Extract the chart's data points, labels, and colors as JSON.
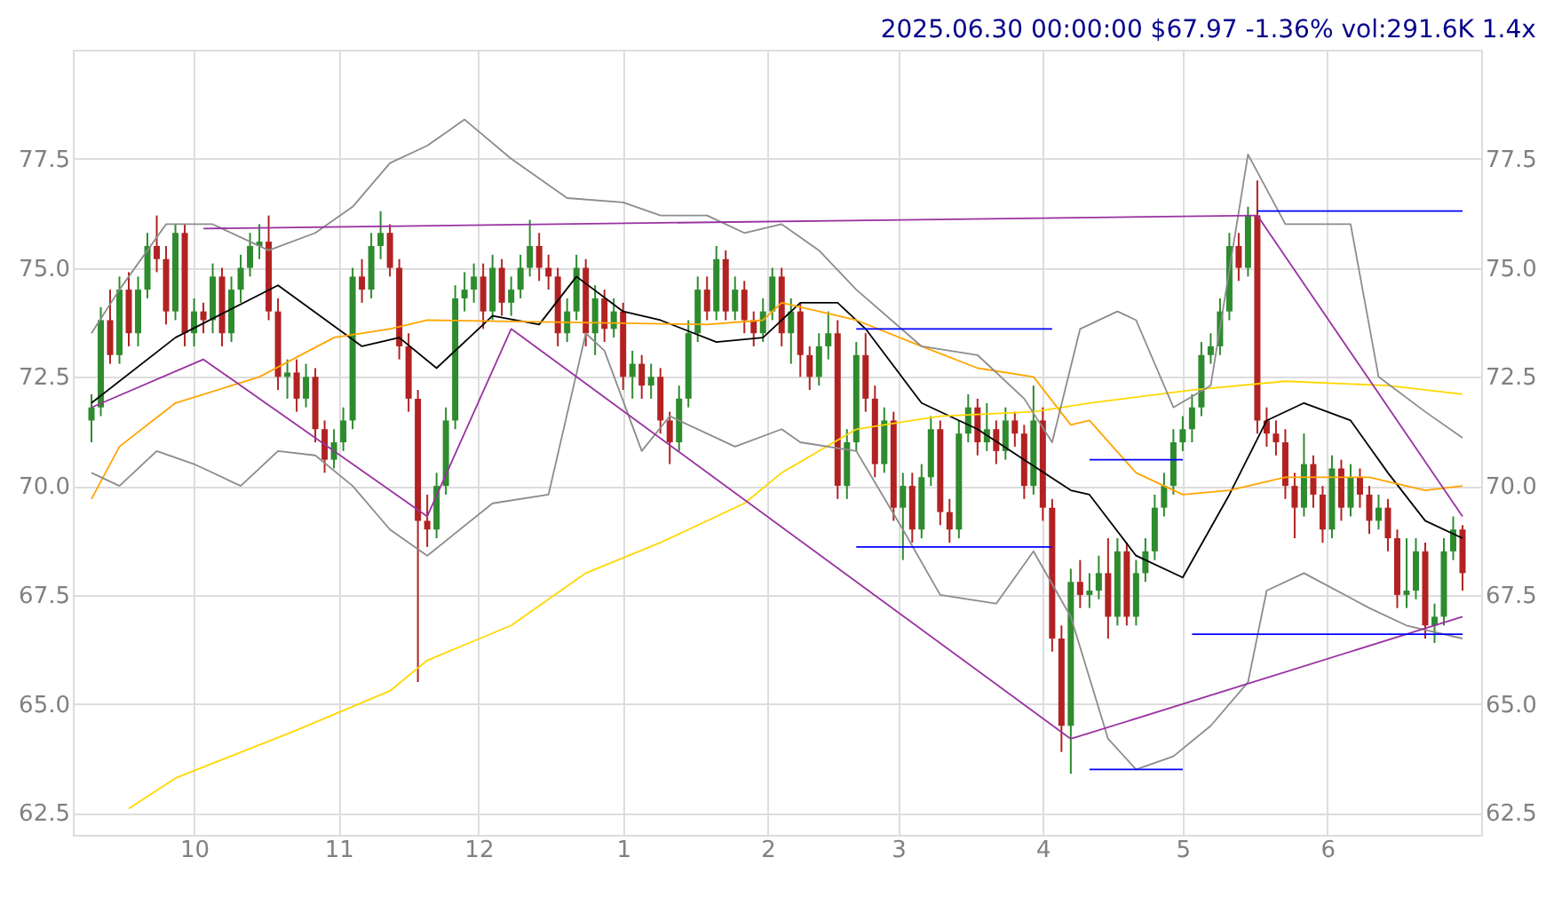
{
  "chart_data": {
    "type": "candlestick",
    "title": "2025.06.30 00:00:00 $67.97 -1.36% vol:291.6K 1.4x",
    "x": [
      "2024-09-09",
      "2024-09-11",
      "2024-09-13",
      "2024-09-15",
      "2024-09-17",
      "2024-09-19",
      "2024-09-21",
      "2024-09-23",
      "2024-09-25",
      "2024-09-27",
      "2024-09-29",
      "2024-10-01",
      "2024-10-03",
      "2024-10-05",
      "2024-10-07",
      "2024-10-09",
      "2024-10-11",
      "2024-10-13",
      "2024-10-15",
      "2024-10-17",
      "2024-10-19",
      "2024-10-21",
      "2024-10-23",
      "2024-10-25",
      "2024-10-27",
      "2024-10-29",
      "2024-10-31",
      "2024-11-02",
      "2024-11-04",
      "2024-11-06",
      "2024-11-08",
      "2024-11-10",
      "2024-11-12",
      "2024-11-14",
      "2024-11-16",
      "2024-11-18",
      "2024-11-20",
      "2024-11-22",
      "2024-11-24",
      "2024-11-26",
      "2024-11-28",
      "2024-11-30",
      "2024-12-02",
      "2024-12-04",
      "2024-12-06",
      "2024-12-08",
      "2024-12-10",
      "2024-12-12",
      "2024-12-14",
      "2024-12-16",
      "2024-12-18",
      "2024-12-20",
      "2024-12-22",
      "2024-12-24",
      "2024-12-26",
      "2024-12-28",
      "2024-12-30",
      "2025-01-01",
      "2025-01-03",
      "2025-01-05",
      "2025-01-07",
      "2025-01-09",
      "2025-01-11",
      "2025-01-13",
      "2025-01-15",
      "2025-01-17",
      "2025-01-19",
      "2025-01-21",
      "2025-01-23",
      "2025-01-25",
      "2025-01-27",
      "2025-01-29",
      "2025-01-31",
      "2025-02-02",
      "2025-02-04",
      "2025-02-06",
      "2025-02-08",
      "2025-02-10",
      "2025-02-12",
      "2025-02-14",
      "2025-02-16",
      "2025-02-18",
      "2025-02-20",
      "2025-02-22",
      "2025-02-24",
      "2025-02-26",
      "2025-02-28",
      "2025-03-02",
      "2025-03-04",
      "2025-03-06",
      "2025-03-08",
      "2025-03-10",
      "2025-03-12",
      "2025-03-14",
      "2025-03-16",
      "2025-03-18",
      "2025-03-20",
      "2025-03-22",
      "2025-03-24",
      "2025-03-26",
      "2025-03-28",
      "2025-03-30",
      "2025-04-01",
      "2025-04-03",
      "2025-04-05",
      "2025-04-07",
      "2025-04-09",
      "2025-04-11",
      "2025-04-13",
      "2025-04-15",
      "2025-04-17",
      "2025-04-19",
      "2025-04-21",
      "2025-04-23",
      "2025-04-25",
      "2025-04-27",
      "2025-04-29",
      "2025-05-01",
      "2025-05-03",
      "2025-05-05",
      "2025-05-07",
      "2025-05-09",
      "2025-05-11",
      "2025-05-13",
      "2025-05-15",
      "2025-05-17",
      "2025-05-19",
      "2025-05-21",
      "2025-05-23",
      "2025-05-25",
      "2025-05-27",
      "2025-05-29",
      "2025-05-31",
      "2025-06-02",
      "2025-06-04",
      "2025-06-06",
      "2025-06-08",
      "2025-06-10",
      "2025-06-12",
      "2025-06-14",
      "2025-06-16",
      "2025-06-18",
      "2025-06-20",
      "2025-06-22",
      "2025-06-24",
      "2025-06-26",
      "2025-06-28",
      "2025-06-30"
    ],
    "ohlc": [
      [
        71.5,
        72.1,
        71.0,
        71.8
      ],
      [
        71.8,
        74.1,
        71.6,
        73.8
      ],
      [
        73.8,
        74.5,
        72.8,
        73.0
      ],
      [
        73.0,
        74.8,
        72.8,
        74.5
      ],
      [
        74.5,
        74.9,
        73.2,
        73.5
      ],
      [
        73.5,
        74.8,
        73.2,
        74.5
      ],
      [
        74.5,
        75.8,
        74.3,
        75.5
      ],
      [
        75.5,
        76.2,
        74.9,
        75.2
      ],
      [
        75.2,
        75.5,
        73.7,
        74.0
      ],
      [
        74.0,
        76.0,
        73.8,
        75.8
      ],
      [
        75.8,
        76.0,
        73.2,
        73.5
      ],
      [
        73.5,
        74.3,
        73.2,
        74.0
      ],
      [
        74.0,
        74.2,
        73.5,
        73.8
      ],
      [
        73.8,
        75.1,
        73.5,
        74.8
      ],
      [
        74.8,
        75.0,
        73.2,
        73.5
      ],
      [
        73.5,
        74.8,
        73.3,
        74.5
      ],
      [
        74.5,
        75.3,
        74.2,
        75.0
      ],
      [
        75.0,
        75.8,
        74.8,
        75.5
      ],
      [
        75.5,
        76.0,
        75.2,
        75.6
      ],
      [
        75.6,
        76.2,
        73.8,
        74.0
      ],
      [
        74.0,
        74.3,
        72.2,
        72.5
      ],
      [
        72.5,
        72.9,
        72.0,
        72.6
      ],
      [
        72.6,
        72.9,
        71.7,
        72.0
      ],
      [
        72.0,
        72.8,
        71.8,
        72.5
      ],
      [
        72.5,
        72.7,
        71.0,
        71.3
      ],
      [
        71.3,
        71.5,
        70.3,
        70.6
      ],
      [
        70.6,
        71.3,
        70.4,
        71.0
      ],
      [
        71.0,
        71.8,
        70.8,
        71.5
      ],
      [
        71.5,
        75.0,
        71.3,
        74.8
      ],
      [
        74.8,
        75.2,
        74.2,
        74.5
      ],
      [
        74.5,
        75.8,
        74.3,
        75.5
      ],
      [
        75.5,
        76.3,
        75.2,
        75.8
      ],
      [
        75.8,
        76.0,
        74.8,
        75.0
      ],
      [
        75.0,
        75.2,
        72.9,
        73.2
      ],
      [
        73.2,
        73.5,
        71.7,
        72.0
      ],
      [
        72.0,
        72.2,
        65.5,
        69.2
      ],
      [
        69.2,
        69.8,
        68.6,
        69.0
      ],
      [
        69.0,
        70.3,
        68.8,
        70.0
      ],
      [
        70.0,
        71.8,
        69.8,
        71.5
      ],
      [
        71.5,
        74.6,
        71.3,
        74.3
      ],
      [
        74.3,
        74.9,
        74.0,
        74.5
      ],
      [
        74.5,
        75.1,
        74.2,
        74.8
      ],
      [
        74.8,
        75.1,
        73.6,
        74.0
      ],
      [
        74.0,
        75.3,
        73.8,
        75.0
      ],
      [
        75.0,
        75.2,
        73.9,
        74.2
      ],
      [
        74.2,
        74.8,
        73.9,
        74.5
      ],
      [
        74.5,
        75.3,
        74.3,
        75.0
      ],
      [
        75.0,
        76.1,
        74.8,
        75.5
      ],
      [
        75.5,
        75.8,
        74.7,
        75.0
      ],
      [
        75.0,
        75.3,
        74.5,
        74.8
      ],
      [
        74.8,
        75.0,
        73.2,
        73.5
      ],
      [
        73.5,
        74.3,
        73.3,
        74.0
      ],
      [
        74.0,
        75.3,
        73.8,
        75.0
      ],
      [
        75.0,
        75.2,
        73.2,
        73.5
      ],
      [
        73.5,
        74.6,
        73.0,
        74.3
      ],
      [
        74.3,
        74.5,
        73.3,
        73.6
      ],
      [
        73.6,
        74.3,
        73.4,
        74.0
      ],
      [
        74.0,
        74.2,
        72.2,
        72.5
      ],
      [
        72.5,
        73.1,
        72.0,
        72.8
      ],
      [
        72.8,
        73.0,
        72.0,
        72.3
      ],
      [
        72.3,
        72.8,
        72.0,
        72.5
      ],
      [
        72.5,
        72.7,
        71.2,
        71.5
      ],
      [
        71.5,
        71.7,
        70.5,
        71.0
      ],
      [
        71.0,
        72.3,
        70.8,
        72.0
      ],
      [
        72.0,
        73.8,
        71.8,
        73.5
      ],
      [
        73.5,
        74.8,
        73.3,
        74.5
      ],
      [
        74.5,
        74.8,
        73.8,
        74.0
      ],
      [
        74.0,
        75.5,
        73.8,
        75.2
      ],
      [
        75.2,
        75.4,
        73.8,
        74.0
      ],
      [
        74.0,
        74.8,
        73.8,
        74.5
      ],
      [
        74.5,
        74.7,
        73.5,
        73.8
      ],
      [
        73.8,
        74.0,
        73.2,
        73.5
      ],
      [
        73.5,
        74.3,
        73.3,
        74.0
      ],
      [
        74.0,
        75.0,
        73.8,
        74.8
      ],
      [
        74.8,
        75.0,
        73.2,
        73.5
      ],
      [
        73.5,
        74.3,
        72.8,
        74.0
      ],
      [
        74.0,
        74.2,
        72.5,
        73.0
      ],
      [
        73.0,
        73.2,
        72.2,
        72.5
      ],
      [
        72.5,
        73.5,
        72.3,
        73.2
      ],
      [
        73.2,
        74.0,
        72.9,
        73.5
      ],
      [
        73.5,
        73.8,
        69.7,
        70.0
      ],
      [
        70.0,
        71.3,
        69.7,
        71.0
      ],
      [
        71.0,
        73.3,
        70.8,
        73.0
      ],
      [
        73.0,
        73.5,
        71.7,
        72.0
      ],
      [
        72.0,
        72.3,
        70.2,
        70.5
      ],
      [
        70.5,
        71.8,
        70.3,
        71.5
      ],
      [
        71.5,
        71.7,
        69.2,
        69.5
      ],
      [
        69.5,
        70.3,
        68.3,
        70.0
      ],
      [
        70.0,
        70.3,
        68.7,
        69.0
      ],
      [
        69.0,
        70.5,
        68.8,
        70.2
      ],
      [
        70.2,
        71.6,
        70.0,
        71.3
      ],
      [
        71.3,
        71.5,
        69.1,
        69.4
      ],
      [
        69.4,
        69.7,
        68.7,
        69.0
      ],
      [
        69.0,
        71.5,
        68.8,
        71.2
      ],
      [
        71.2,
        72.1,
        71.0,
        71.8
      ],
      [
        71.8,
        72.0,
        70.7,
        71.0
      ],
      [
        71.0,
        71.9,
        70.8,
        71.3
      ],
      [
        71.3,
        71.5,
        70.5,
        70.8
      ],
      [
        70.8,
        71.8,
        70.6,
        71.5
      ],
      [
        71.5,
        71.7,
        70.9,
        71.2
      ],
      [
        71.2,
        71.4,
        69.7,
        70.0
      ],
      [
        70.0,
        72.3,
        69.8,
        71.5
      ],
      [
        71.5,
        71.8,
        69.2,
        69.5
      ],
      [
        69.5,
        69.7,
        66.2,
        66.5
      ],
      [
        66.5,
        66.8,
        63.9,
        64.5
      ],
      [
        64.5,
        68.1,
        63.4,
        67.8
      ],
      [
        67.8,
        68.3,
        67.2,
        67.5
      ],
      [
        67.5,
        68.0,
        67.2,
        67.6
      ],
      [
        67.6,
        68.4,
        67.4,
        68.0
      ],
      [
        68.0,
        68.8,
        66.5,
        67.0
      ],
      [
        67.0,
        68.8,
        66.8,
        68.5
      ],
      [
        68.5,
        68.7,
        66.8,
        67.0
      ],
      [
        67.0,
        68.3,
        66.8,
        68.0
      ],
      [
        68.0,
        68.8,
        67.8,
        68.5
      ],
      [
        68.5,
        69.8,
        68.3,
        69.5
      ],
      [
        69.5,
        70.3,
        69.3,
        70.0
      ],
      [
        70.0,
        71.3,
        69.8,
        71.0
      ],
      [
        71.0,
        71.6,
        70.8,
        71.3
      ],
      [
        71.3,
        72.1,
        71.0,
        71.8
      ],
      [
        71.8,
        73.3,
        71.6,
        73.0
      ],
      [
        73.0,
        73.5,
        72.8,
        73.2
      ],
      [
        73.2,
        74.3,
        73.0,
        74.0
      ],
      [
        74.0,
        75.8,
        73.8,
        75.5
      ],
      [
        75.5,
        75.8,
        74.7,
        75.0
      ],
      [
        75.0,
        76.4,
        74.8,
        76.2
      ],
      [
        76.2,
        77.0,
        71.2,
        71.5
      ],
      [
        71.5,
        71.8,
        70.9,
        71.2
      ],
      [
        71.2,
        71.5,
        70.7,
        71.0
      ],
      [
        71.0,
        71.3,
        69.7,
        70.0
      ],
      [
        70.0,
        70.3,
        68.8,
        69.5
      ],
      [
        69.5,
        71.2,
        69.3,
        70.5
      ],
      [
        70.5,
        70.7,
        69.5,
        69.8
      ],
      [
        69.8,
        70.0,
        68.7,
        69.0
      ],
      [
        69.0,
        70.7,
        68.8,
        70.4
      ],
      [
        70.4,
        70.6,
        69.2,
        69.5
      ],
      [
        69.5,
        70.5,
        69.3,
        70.2
      ],
      [
        70.2,
        70.4,
        69.5,
        69.8
      ],
      [
        69.8,
        70.0,
        68.9,
        69.2
      ],
      [
        69.2,
        69.8,
        69.0,
        69.5
      ],
      [
        69.5,
        69.7,
        68.5,
        68.8
      ],
      [
        68.8,
        69.0,
        67.2,
        67.5
      ],
      [
        67.5,
        68.8,
        67.2,
        67.6
      ],
      [
        67.6,
        68.8,
        67.4,
        68.5
      ],
      [
        68.5,
        68.7,
        66.5,
        66.8
      ],
      [
        66.8,
        67.3,
        66.4,
        67.0
      ],
      [
        67.0,
        68.8,
        66.8,
        68.5
      ],
      [
        68.5,
        69.3,
        68.3,
        69.0
      ],
      [
        69.0,
        69.1,
        67.6,
        68.0
      ]
    ],
    "colors": [
      "#2e8b2e",
      "#2e8b2e",
      "#b22222",
      "#2e8b2e",
      "#b22222",
      "#2e8b2e",
      "#2e8b2e",
      "#b22222",
      "#b22222",
      "#2e8b2e",
      "#b22222",
      "#2e8b2e",
      "#b22222",
      "#2e8b2e",
      "#b22222",
      "#2e8b2e",
      "#2e8b2e",
      "#2e8b2e",
      "#2e8b2e",
      "#b22222",
      "#b22222",
      "#2e8b2e",
      "#b22222",
      "#2e8b2e",
      "#b22222",
      "#b22222",
      "#2e8b2e",
      "#2e8b2e",
      "#2e8b2e",
      "#b22222",
      "#2e8b2e",
      "#2e8b2e",
      "#b22222",
      "#b22222",
      "#b22222",
      "#b22222",
      "#b22222",
      "#2e8b2e",
      "#2e8b2e",
      "#2e8b2e",
      "#2e8b2e",
      "#2e8b2e",
      "#b22222",
      "#2e8b2e",
      "#b22222",
      "#2e8b2e",
      "#2e8b2e",
      "#2e8b2e",
      "#b22222",
      "#b22222",
      "#b22222",
      "#2e8b2e",
      "#2e8b2e",
      "#b22222",
      "#2e8b2e",
      "#b22222",
      "#2e8b2e",
      "#b22222",
      "#2e8b2e",
      "#b22222",
      "#2e8b2e",
      "#b22222",
      "#b22222",
      "#2e8b2e",
      "#2e8b2e",
      "#2e8b2e",
      "#b22222",
      "#2e8b2e",
      "#b22222",
      "#2e8b2e",
      "#b22222",
      "#b22222",
      "#2e8b2e",
      "#2e8b2e",
      "#b22222",
      "#2e8b2e",
      "#b22222",
      "#b22222",
      "#2e8b2e",
      "#2e8b2e",
      "#b22222",
      "#2e8b2e",
      "#2e8b2e",
      "#b22222",
      "#b22222",
      "#2e8b2e",
      "#b22222",
      "#2e8b2e",
      "#b22222",
      "#2e8b2e",
      "#2e8b2e",
      "#b22222",
      "#b22222",
      "#2e8b2e",
      "#2e8b2e",
      "#b22222",
      "#2e8b2e",
      "#b22222",
      "#2e8b2e",
      "#b22222",
      "#b22222",
      "#2e8b2e",
      "#b22222",
      "#b22222",
      "#b22222",
      "#2e8b2e",
      "#b22222",
      "#2e8b2e",
      "#2e8b2e",
      "#b22222",
      "#2e8b2e",
      "#b22222",
      "#2e8b2e",
      "#2e8b2e",
      "#2e8b2e",
      "#2e8b2e",
      "#2e8b2e",
      "#2e8b2e",
      "#2e8b2e",
      "#2e8b2e",
      "#2e8b2e",
      "#2e8b2e",
      "#2e8b2e",
      "#b22222",
      "#2e8b2e",
      "#b22222",
      "#b22222",
      "#b22222",
      "#b22222",
      "#b22222",
      "#2e8b2e",
      "#b22222",
      "#b22222",
      "#2e8b2e",
      "#b22222",
      "#2e8b2e",
      "#b22222",
      "#b22222",
      "#2e8b2e",
      "#b22222",
      "#b22222",
      "#2e8b2e",
      "#2e8b2e",
      "#b22222",
      "#2e8b2e",
      "#2e8b2e",
      "#2e8b2e",
      "#b22222"
    ],
    "series": [
      {
        "type": "line",
        "color": "#000000",
        "x": [
          "2024-09-09",
          "2024-09-27",
          "2024-10-19",
          "2024-11-06",
          "2024-11-14",
          "2024-11-22",
          "2024-12-04",
          "2024-12-14",
          "2024-12-22",
          "2025-01-01",
          "2025-01-09",
          "2025-01-21",
          "2025-01-31",
          "2025-02-08",
          "2025-02-16",
          "2025-02-22",
          "2025-03-06",
          "2025-03-18",
          "2025-03-28",
          "2025-04-07",
          "2025-04-11",
          "2025-04-21",
          "2025-05-01",
          "2025-05-11",
          "2025-05-19",
          "2025-05-27",
          "2025-06-06",
          "2025-06-14",
          "2025-06-22",
          "2025-06-30"
        ],
        "values": [
          71.9,
          73.4,
          74.6,
          73.2,
          73.4,
          72.7,
          73.9,
          73.7,
          74.8,
          74.0,
          73.8,
          73.3,
          73.4,
          74.2,
          74.2,
          73.6,
          71.9,
          71.3,
          70.6,
          69.9,
          69.8,
          68.4,
          67.9,
          69.8,
          71.5,
          71.9,
          71.5,
          70.3,
          69.2,
          68.8
        ]
      },
      {
        "type": "line",
        "color": "#ffa500",
        "x": [
          "2024-09-09",
          "2024-09-15",
          "2024-09-27",
          "2024-10-15",
          "2024-10-31",
          "2024-11-12",
          "2024-11-20",
          "2025-01-19",
          "2025-01-31",
          "2025-02-04",
          "2025-02-20",
          "2025-03-06",
          "2025-03-18",
          "2025-03-30",
          "2025-04-07",
          "2025-04-11",
          "2025-04-21",
          "2025-05-01",
          "2025-05-11",
          "2025-05-23",
          "2025-06-10",
          "2025-06-22",
          "2025-06-30"
        ],
        "values": [
          69.7,
          70.9,
          71.9,
          72.5,
          73.4,
          73.6,
          73.8,
          73.7,
          73.8,
          74.2,
          73.8,
          73.2,
          72.7,
          72.5,
          71.4,
          71.5,
          70.3,
          69.8,
          69.9,
          70.2,
          70.2,
          69.9,
          70.0
        ]
      },
      {
        "type": "line",
        "color": "#ffd700",
        "x": [
          "2024-09-17",
          "2024-09-27",
          "2024-10-23",
          "2024-11-12",
          "2024-11-20",
          "2024-12-08",
          "2024-12-24",
          "2025-01-09",
          "2025-01-27",
          "2025-02-04",
          "2025-02-20",
          "2025-03-10",
          "2025-03-30",
          "2025-04-11",
          "2025-05-03",
          "2025-05-23",
          "2025-06-14",
          "2025-06-30"
        ],
        "values": [
          62.6,
          63.3,
          64.4,
          65.3,
          66.0,
          66.8,
          68.0,
          68.7,
          69.6,
          70.3,
          71.3,
          71.6,
          71.7,
          71.9,
          72.2,
          72.4,
          72.3,
          72.1
        ]
      },
      {
        "type": "line",
        "color": "#8c8c8c",
        "x": [
          "2024-09-09",
          "2024-09-15",
          "2024-09-25",
          "2024-10-05",
          "2024-10-17",
          "2024-10-27",
          "2024-11-04",
          "2024-11-12",
          "2024-11-20",
          "2024-11-28",
          "2024-12-08",
          "2024-12-20",
          "2025-01-01",
          "2025-01-09",
          "2025-01-19",
          "2025-01-27",
          "2025-02-04",
          "2025-02-12",
          "2025-02-20",
          "2025-03-06",
          "2025-03-18",
          "2025-03-28",
          "2025-04-03",
          "2025-04-09",
          "2025-04-17",
          "2025-04-21",
          "2025-04-29",
          "2025-05-07",
          "2025-05-15",
          "2025-05-23",
          "2025-06-06",
          "2025-06-12",
          "2025-06-22",
          "2025-06-30"
        ],
        "values": [
          73.5,
          74.5,
          76.0,
          76.0,
          75.4,
          75.8,
          76.4,
          77.4,
          77.8,
          78.4,
          77.5,
          76.6,
          76.5,
          76.2,
          76.2,
          75.8,
          76.0,
          75.4,
          74.5,
          73.2,
          73.0,
          72.0,
          71.0,
          73.6,
          74.0,
          73.8,
          71.8,
          72.3,
          77.6,
          76.0,
          76.0,
          72.5,
          71.7,
          71.1
        ]
      },
      {
        "type": "line",
        "color": "#8c8c8c",
        "x": [
          "2024-09-09",
          "2024-09-15",
          "2024-09-23",
          "2024-10-01",
          "2024-10-11",
          "2024-10-19",
          "2024-10-27",
          "2024-11-04",
          "2024-11-12",
          "2024-11-20",
          "2024-12-04",
          "2024-12-16",
          "2024-12-24",
          "2024-12-28",
          "2025-01-05",
          "2025-01-11",
          "2025-01-25",
          "2025-02-04",
          "2025-02-08",
          "2025-02-20",
          "2025-03-02",
          "2025-03-10",
          "2025-03-22",
          "2025-03-30",
          "2025-04-07",
          "2025-04-15",
          "2025-04-21",
          "2025-04-29",
          "2025-05-07",
          "2025-05-15",
          "2025-05-19",
          "2025-05-27",
          "2025-06-10",
          "2025-06-18",
          "2025-06-30"
        ],
        "values": [
          70.3,
          70.0,
          70.8,
          70.5,
          70.0,
          70.8,
          70.7,
          70.0,
          69.0,
          68.4,
          69.6,
          69.8,
          73.5,
          73.1,
          70.8,
          71.6,
          70.9,
          71.3,
          71.0,
          70.8,
          69.0,
          67.5,
          67.3,
          68.5,
          67.0,
          64.2,
          63.5,
          63.8,
          64.5,
          65.5,
          67.6,
          68.0,
          67.2,
          66.8,
          66.5
        ]
      },
      {
        "type": "line",
        "color": "#9932a0",
        "x": [
          "2024-09-09",
          "2024-10-03",
          "2024-11-20",
          "2024-12-08",
          "2025-04-07",
          "2025-06-30"
        ],
        "values": [
          71.8,
          72.9,
          69.3,
          73.6,
          64.2,
          67.0
        ]
      },
      {
        "type": "line",
        "color": "#9932a0",
        "x": [
          "2024-10-03",
          "2025-05-17"
        ],
        "values": [
          75.9,
          76.2
        ]
      },
      {
        "type": "line",
        "color": "#9932a0",
        "x": [
          "2025-05-17",
          "2025-06-30"
        ],
        "values": [
          76.2,
          69.3
        ]
      },
      {
        "type": "line",
        "color": "#0000ff",
        "x": [
          "2025-02-20",
          "2025-04-03"
        ],
        "values": [
          73.6,
          73.6
        ]
      },
      {
        "type": "line",
        "color": "#0000ff",
        "x": [
          "2025-02-20",
          "2025-04-03"
        ],
        "values": [
          68.6,
          68.6
        ]
      },
      {
        "type": "line",
        "color": "#0000ff",
        "x": [
          "2025-04-11",
          "2025-05-01"
        ],
        "values": [
          70.6,
          70.6
        ]
      },
      {
        "type": "line",
        "color": "#0000ff",
        "x": [
          "2025-04-11",
          "2025-05-01"
        ],
        "values": [
          63.5,
          63.5
        ]
      },
      {
        "type": "line",
        "color": "#0000ff",
        "x": [
          "2025-05-03",
          "2025-06-30"
        ],
        "values": [
          66.6,
          66.6
        ]
      },
      {
        "type": "line",
        "color": "#0000ff",
        "x": [
          "2025-05-17",
          "2025-06-30"
        ],
        "values": [
          76.3,
          76.3
        ]
      }
    ],
    "xlim": [
      "2024-09-05",
      "2025-07-04"
    ],
    "xticks": [
      {
        "value": "2024-10-01",
        "label": "10"
      },
      {
        "value": "2024-11-01",
        "label": "11"
      },
      {
        "value": "2024-12-01",
        "label": "12"
      },
      {
        "value": "2025-01-01",
        "label": "1"
      },
      {
        "value": "2025-02-01",
        "label": "2"
      },
      {
        "value": "2025-03-01",
        "label": "3"
      },
      {
        "value": "2025-04-01",
        "label": "4"
      },
      {
        "value": "2025-05-01",
        "label": "5"
      },
      {
        "value": "2025-06-01",
        "label": "6"
      }
    ],
    "ylim": [
      62,
      80
    ],
    "yticks": [
      62.5,
      {
        "value": 65,
        "label": "65.0"
      },
      67.5,
      {
        "value": 70,
        "label": "70.0"
      },
      72.5,
      {
        "value": 75,
        "label": "75.0"
      },
      77.5
    ],
    "y2lim": [
      62,
      80
    ],
    "y2ticks": [
      62.5,
      {
        "value": 65,
        "label": "65.0"
      },
      67.5,
      {
        "value": 70,
        "label": "70.0"
      },
      72.5,
      {
        "value": 75,
        "label": "75.0"
      },
      77.5
    ],
    "grid": true
  }
}
